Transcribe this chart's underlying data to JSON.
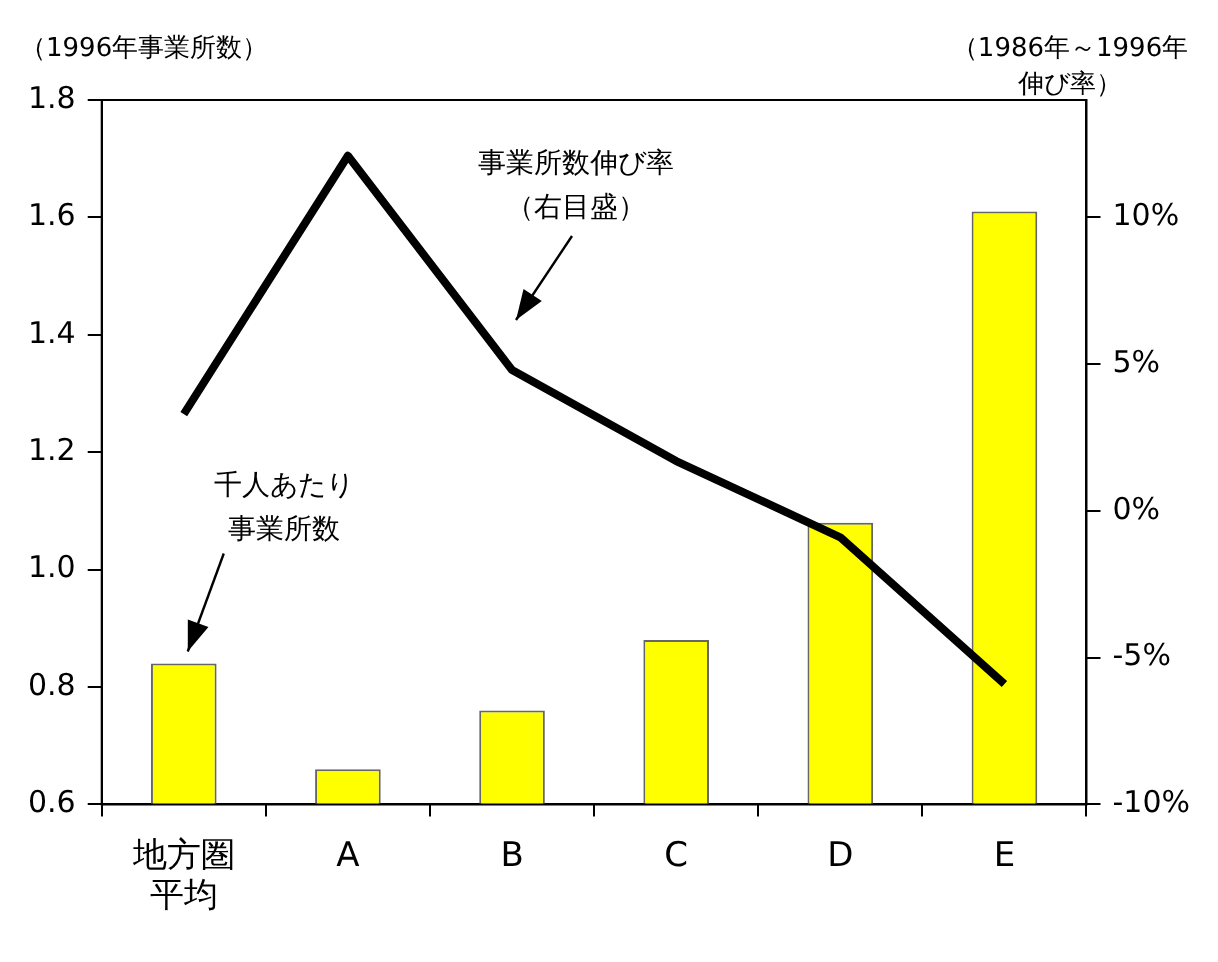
{
  "chart_data": {
    "type": "bar",
    "ylabel": "（1996年事業所数）",
    "y2label": "（1986年～1996年伸び率）",
    "categories": [
      "地方圏平均",
      "A",
      "B",
      "C",
      "D",
      "E"
    ],
    "series": [
      {
        "color": "#ffff00",
        "values": [
          0.84,
          0.66,
          0.76,
          0.88,
          1.08,
          1.61
        ]
      },
      {
        "type": "line",
        "axis": "y2",
        "color": "#000000",
        "values": [
          3.3,
          12.1,
          4.8,
          1.7,
          -0.9,
          -5.9
        ]
      }
    ],
    "ylim": [
      0.6,
      1.8
    ],
    "yticks": [
      {
        "value": 0.6,
        "label": "0.6"
      },
      {
        "value": 0.8,
        "label": "0.8"
      },
      {
        "value": 1,
        "label": "1.0"
      },
      {
        "value": 1.2,
        "label": "1.2"
      },
      {
        "value": 1.4,
        "label": "1.4"
      },
      {
        "value": 1.6,
        "label": "1.6"
      },
      {
        "value": 1.8,
        "label": "1.8"
      }
    ],
    "y2lim": [
      -10,
      14
    ],
    "y2ticks": [
      {
        "value": -10,
        "label": "-10%"
      },
      {
        "value": -5,
        "label": "-5%"
      },
      {
        "value": 0,
        "label": "0%"
      },
      {
        "value": 5,
        "label": "5%"
      },
      {
        "value": 10,
        "label": "10%"
      }
    ],
    "grid": false,
    "legend": false,
    "marker": "none",
    "line_style": "solid",
    "annotations": [
      {
        "text": "千人あたり事業所数",
        "x": "地方圏平均",
        "y": 0.84
      },
      "事業所数伸び率（右目盛）"
    ]
  }
}
